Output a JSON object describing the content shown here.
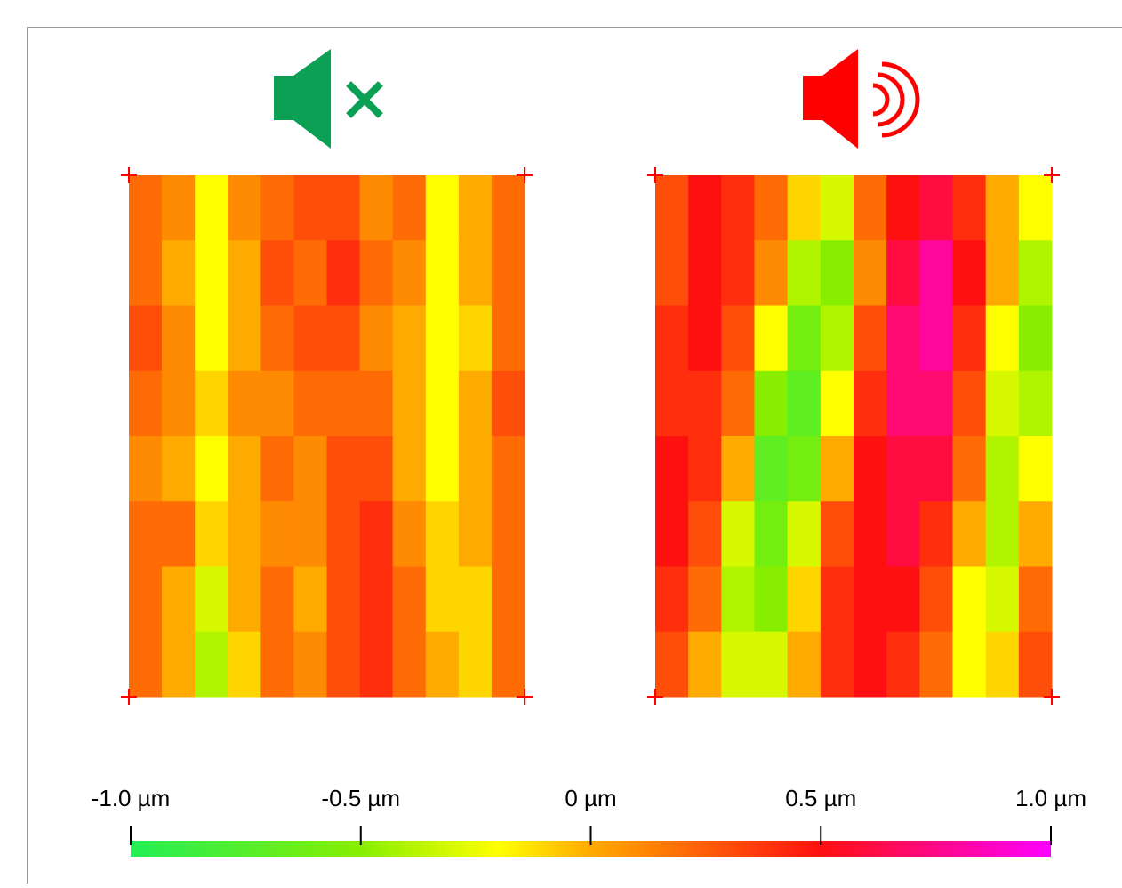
{
  "chart_data": {
    "type": "heatmap",
    "maps": [
      {
        "z": [
          [
            0.2,
            0.1,
            -0.2,
            0.1,
            0.2,
            0.3,
            0.3,
            0.1,
            0.2,
            -0.2,
            0,
            0.2
          ],
          [
            0.2,
            0,
            -0.2,
            0,
            0.3,
            0.2,
            0.4,
            0.2,
            0.1,
            -0.2,
            0,
            0.2
          ],
          [
            0.3,
            0.1,
            -0.2,
            0,
            0.2,
            0.3,
            0.3,
            0.1,
            0,
            -0.2,
            -0.1,
            0.2
          ],
          [
            0.2,
            0.1,
            -0.1,
            0.1,
            0.1,
            0.2,
            0.2,
            0.2,
            0,
            -0.2,
            0,
            0.3
          ],
          [
            0.1,
            0,
            -0.2,
            0,
            0.2,
            0.1,
            0.3,
            0.3,
            0,
            -0.2,
            0,
            0.2
          ],
          [
            0.2,
            0.2,
            -0.1,
            0,
            0.1,
            0.1,
            0.3,
            0.4,
            0.1,
            -0.1,
            0,
            0.2
          ],
          [
            0.2,
            0,
            -0.3,
            0,
            0.2,
            0,
            0.3,
            0.4,
            0.2,
            -0.1,
            -0.1,
            0.2
          ],
          [
            0.2,
            0,
            -0.4,
            -0.1,
            0.2,
            0.1,
            0.3,
            0.4,
            0.2,
            0,
            -0.1,
            0.2
          ]
        ]
      },
      {
        "z": [
          [
            0.3,
            0.5,
            0.4,
            0.2,
            -0.1,
            -0.3,
            0.2,
            0.5,
            0.6,
            0.4,
            0,
            -0.2
          ],
          [
            0.3,
            0.5,
            0.4,
            0.1,
            -0.4,
            -0.5,
            0.1,
            0.6,
            0.8,
            0.5,
            0,
            -0.4
          ],
          [
            0.4,
            0.5,
            0.3,
            -0.2,
            -0.6,
            -0.4,
            0.3,
            0.7,
            0.8,
            0.4,
            -0.2,
            -0.5
          ],
          [
            0.4,
            0.4,
            0.2,
            -0.5,
            -0.7,
            -0.2,
            0.4,
            0.7,
            0.7,
            0.3,
            -0.3,
            -0.4
          ],
          [
            0.5,
            0.4,
            0,
            -0.7,
            -0.6,
            0,
            0.5,
            0.6,
            0.6,
            0.2,
            -0.4,
            -0.2
          ],
          [
            0.5,
            0.3,
            -0.3,
            -0.6,
            -0.3,
            0.3,
            0.5,
            0.6,
            0.4,
            0,
            -0.4,
            0
          ],
          [
            0.4,
            0.2,
            -0.4,
            -0.5,
            -0.1,
            0.4,
            0.5,
            0.5,
            0.3,
            -0.2,
            -0.3,
            0.2
          ],
          [
            0.3,
            0,
            -0.3,
            -0.3,
            0,
            0.4,
            0.5,
            0.4,
            0.2,
            -0.2,
            -0.1,
            0.3
          ]
        ]
      }
    ],
    "colorscale": [
      {
        "value": -1,
        "color": "#22ee55"
      },
      {
        "value": -0.5,
        "color": "#88ee00"
      },
      {
        "value": -0.2,
        "color": "#ffff00"
      },
      {
        "value": 0,
        "color": "#ffaa00"
      },
      {
        "value": 0.5,
        "color": "#ff1010"
      },
      {
        "value": 1,
        "color": "#ff00ff"
      }
    ],
    "zlim": [
      -1,
      1
    ],
    "zticks": [
      {
        "value": -1,
        "label": "-1.0 µm"
      },
      {
        "value": -0.5,
        "label": "-0.5 µm"
      },
      {
        "value": 0,
        "label": "0 µm"
      },
      {
        "value": 0.5,
        "label": "0.5 µm"
      },
      {
        "value": 1,
        "label": "1.0 µm"
      }
    ]
  }
}
